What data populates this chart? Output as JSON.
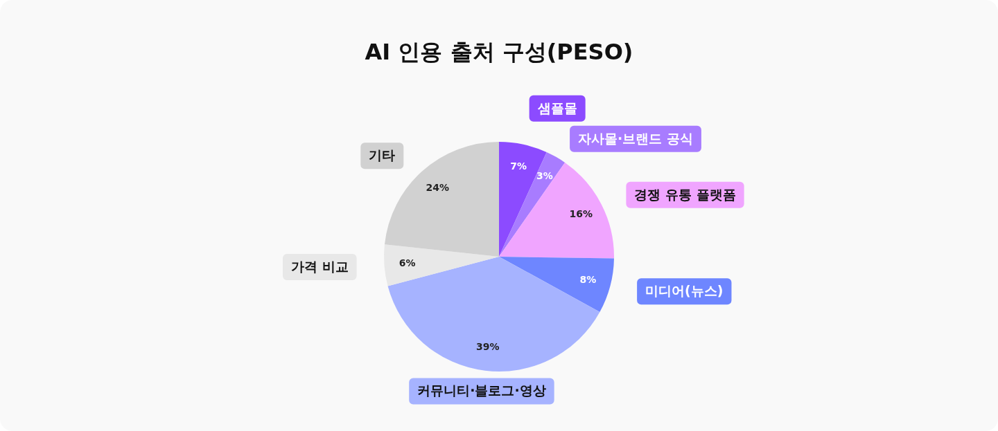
{
  "chart_data": {
    "type": "pie",
    "title": "AI 인용 출처 구성(PESO)",
    "categories": [
      "샘플몰",
      "자사몰·브랜드 공식",
      "경쟁 유통 플랫폼",
      "미디어(뉴스)",
      "커뮤니티·블로그·영상",
      "가격 비교",
      "기타"
    ],
    "values": [
      7,
      3,
      16,
      8,
      39,
      6,
      24
    ],
    "value_labels": [
      "7%",
      "3%",
      "16%",
      "8%",
      "39%",
      "6%",
      "24%"
    ],
    "colors": [
      "#8c4bff",
      "#a87cff",
      "#f0a5ff",
      "#6e86ff",
      "#a6b3ff",
      "#e8e8e8",
      "#d1d1d1"
    ],
    "legend": false
  }
}
